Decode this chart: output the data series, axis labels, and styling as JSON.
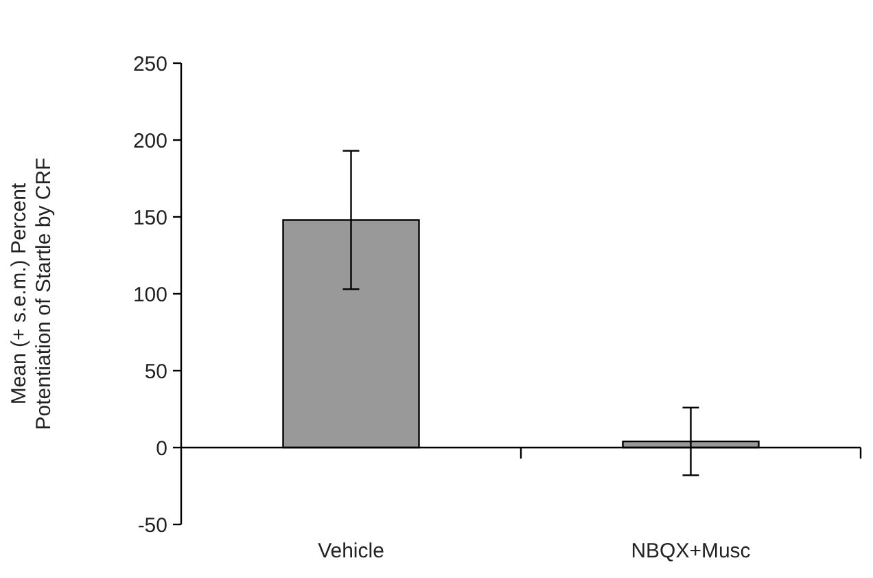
{
  "chart_data": {
    "type": "bar",
    "ylabel": "Mean (+ s.e.m.) Percent\nPotentiation of Startle by CRF",
    "categories": [
      "Vehicle",
      "NBQX+Musc"
    ],
    "values": [
      148,
      4
    ],
    "errors": [
      [
        103,
        193
      ],
      [
        -18,
        26
      ]
    ],
    "color": "#999999",
    "ylim": [
      -50,
      250
    ],
    "yticks": [
      -50,
      0,
      50,
      100,
      150,
      200,
      250
    ]
  }
}
